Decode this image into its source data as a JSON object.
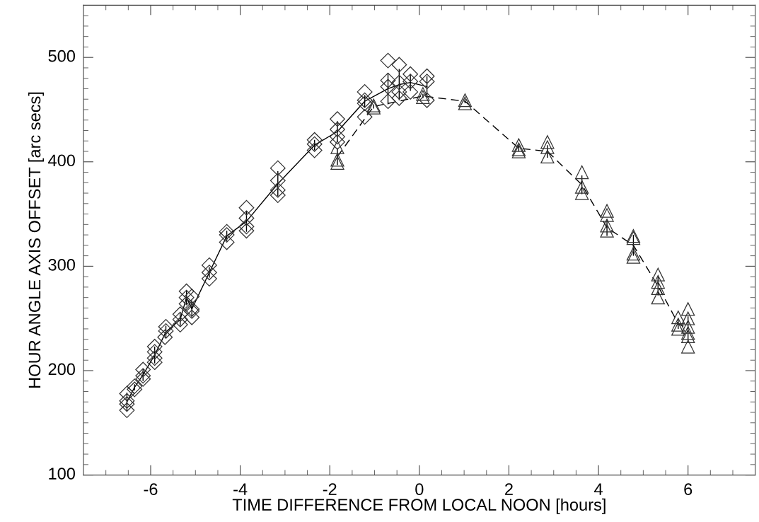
{
  "chart_data": {
    "type": "scatter",
    "xlabel": "TIME DIFFERENCE FROM LOCAL NOON [hours]",
    "ylabel": "HOUR ANGLE AXIS OFFSET [arc secs]",
    "xlim": [
      -7.5,
      7.5
    ],
    "xticks": [
      -6,
      -4,
      -2,
      0,
      2,
      4,
      6
    ],
    "ylim": [
      100,
      550
    ],
    "yticks": [
      100,
      200,
      300,
      400,
      500
    ],
    "grid": false,
    "legend": false,
    "series": [
      {
        "type": "scatter",
        "marker": "diamond",
        "color": "#333333",
        "x": [
          -6.53,
          -6.53,
          -6.53,
          -6.53,
          -6.36,
          -6.36,
          -6.17,
          -6.17,
          -6.17,
          -5.91,
          -5.91,
          -5.91,
          -5.91,
          -5.66,
          -5.66,
          -5.68,
          -5.34,
          -5.34,
          -5.34,
          -5.2,
          -5.2,
          -5.2,
          -5.08,
          -5.08,
          -5.08,
          -5.08,
          -4.69,
          -4.69,
          -4.69,
          -4.3,
          -4.3,
          -4.3,
          -3.86,
          -3.86,
          -3.86,
          -3.86,
          -3.16,
          -3.16,
          -3.16,
          -3.16,
          -2.34,
          -2.34,
          -2.34,
          -1.83,
          -1.83,
          -1.83,
          -1.83,
          -1.22,
          -1.22,
          -1.22,
          -1.22,
          -0.7,
          -0.7,
          -0.7,
          -0.7,
          -0.45,
          -0.45,
          -0.45,
          -0.45,
          -0.2,
          -0.2,
          -0.2,
          0.17,
          0.17,
          0.17
        ],
        "values": [
          178,
          171,
          168,
          162,
          185,
          182,
          201,
          195,
          192,
          223,
          218,
          212,
          208,
          242,
          238,
          232,
          254,
          249,
          244,
          276,
          270,
          264,
          271,
          259,
          257,
          251,
          301,
          294,
          288,
          333,
          330,
          323,
          356,
          346,
          338,
          334,
          394,
          382,
          373,
          368,
          421,
          417,
          411,
          441,
          431,
          424,
          419,
          467,
          459,
          456,
          443,
          497,
          478,
          472,
          458,
          493,
          476,
          467,
          461,
          484,
          477,
          467,
          482,
          477,
          459
        ]
      },
      {
        "type": "scatter",
        "marker": "triangle",
        "color": "#333333",
        "x": [
          -1.83,
          -1.83,
          -1.83,
          -1.02,
          -1.02,
          0.08,
          0.08,
          1.02,
          1.02,
          2.22,
          2.22,
          2.22,
          2.86,
          2.86,
          2.86,
          3.63,
          3.63,
          3.63,
          4.19,
          4.19,
          4.19,
          4.19,
          4.78,
          4.78,
          4.78,
          4.78,
          5.33,
          5.33,
          5.33,
          5.33,
          5.78,
          5.78,
          5.78,
          6.0,
          6.0,
          6.0,
          6.0,
          6.0,
          6.0
        ],
        "values": [
          414,
          402,
          399,
          454,
          452,
          465,
          462,
          459,
          456,
          416,
          412,
          410,
          419,
          414,
          405,
          390,
          376,
          370,
          353,
          349,
          339,
          334,
          329,
          327,
          312,
          309,
          292,
          285,
          279,
          270,
          251,
          244,
          240,
          259,
          250,
          242,
          236,
          233,
          223
        ]
      },
      {
        "type": "line",
        "line_style": "solid",
        "marker": "none",
        "color": "#000000",
        "x": [
          -6.53,
          -6.36,
          -6.17,
          -5.91,
          -5.66,
          -5.34,
          -5.2,
          -5.08,
          -4.69,
          -4.3,
          -3.86,
          -3.16,
          -2.34,
          -1.83,
          -1.22,
          -0.7,
          -0.45,
          -0.2,
          0.17
        ],
        "values": [
          170,
          184,
          196,
          215,
          237,
          249,
          270,
          259,
          294,
          329,
          343,
          379,
          416,
          429,
          458,
          470,
          474,
          476,
          472
        ],
        "errors": [
          9,
          3,
          6,
          8,
          6,
          6,
          7,
          8,
          5,
          5,
          10,
          12,
          5,
          10,
          6,
          15,
          15,
          8,
          10
        ]
      },
      {
        "type": "line",
        "line_style": "dashed",
        "marker": "none",
        "color": "#000000",
        "x": [
          -1.83,
          -1.02,
          0.08,
          1.02,
          2.22,
          2.86,
          3.63,
          4.19,
          4.78,
          5.33,
          5.78,
          6.0
        ],
        "values": [
          405,
          453,
          463,
          458,
          413,
          410,
          378,
          337,
          320,
          281,
          245,
          240
        ],
        "errors": [
          8,
          2,
          2,
          2,
          3,
          6,
          9,
          8,
          10,
          9,
          5,
          12
        ]
      }
    ]
  }
}
